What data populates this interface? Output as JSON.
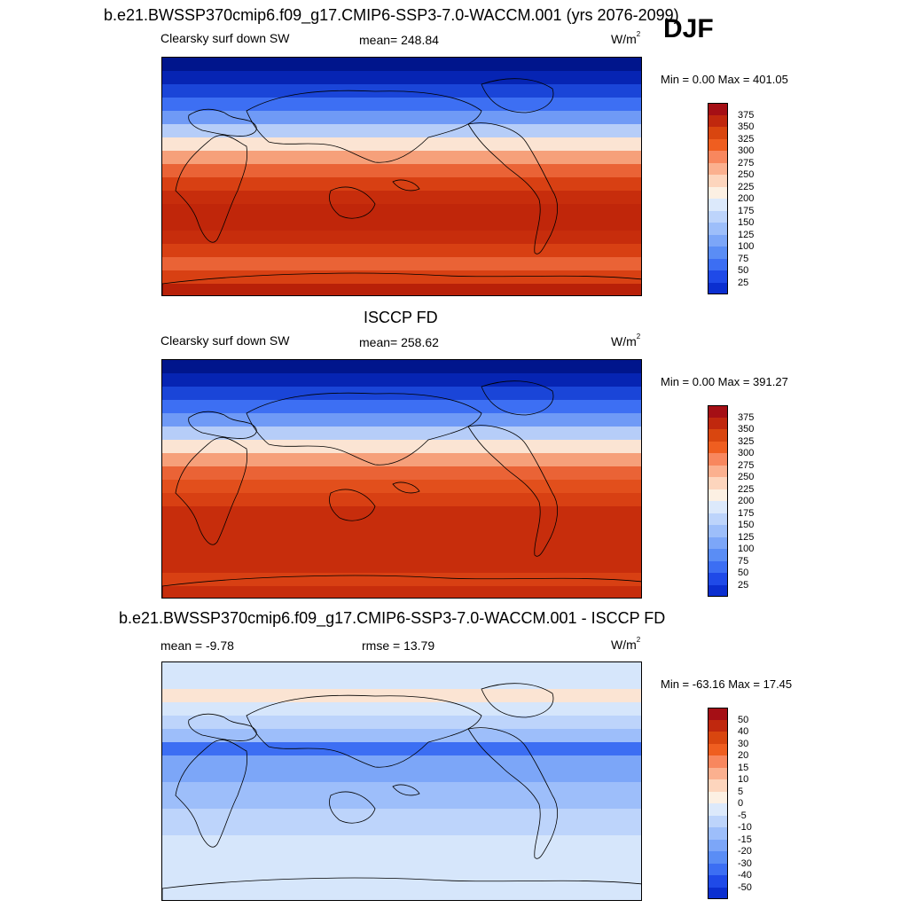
{
  "season": "DJF",
  "panels": [
    {
      "title": "b.e21.BWSSP370cmip6.f09_g17.CMIP6-SSP3-7.0-WACCM.001 (yrs 2076-2099)",
      "variable": "Clearsky surf down SW",
      "stat": "mean= 248.84",
      "units": "W/m",
      "units_sup": "2",
      "minmax": "Min =   0.00 Max = 401.05",
      "colorbar": {
        "colors": [
          "#a50f15",
          "#c0280e",
          "#d9460f",
          "#ef5e20",
          "#f8875e",
          "#fbb08f",
          "#fdd5bd",
          "#fcf0e3",
          "#dce9fb",
          "#bdd4fb",
          "#9dbefa",
          "#7ca6f8",
          "#5a8df5",
          "#3c6ef3",
          "#1f4ae8",
          "#0b2fd0",
          "#041fa6",
          "#000e7a"
        ],
        "labels": [
          "375",
          "350",
          "325",
          "300",
          "275",
          "250",
          "225",
          "200",
          "175",
          "150",
          "125",
          "100",
          "75",
          "50",
          "25"
        ]
      },
      "map_bands": [
        "#00158c",
        "#0624b3",
        "#1a45d8",
        "#3d6ff3",
        "#6f9af6",
        "#b6cdf8",
        "#fbe4d3",
        "#f6a07a",
        "#ea6336",
        "#d84013",
        "#c72d0c",
        "#c0260a",
        "#c0260a",
        "#c72d0c",
        "#d84013",
        "#ea6336",
        "#d84013",
        "#b82008"
      ]
    },
    {
      "title": "ISCCP FD",
      "variable": "Clearsky surf down SW",
      "stat": "mean= 258.62",
      "units": "W/m",
      "units_sup": "2",
      "minmax": "Min =   0.00 Max = 391.27",
      "colorbar": {
        "colors": [
          "#a50f15",
          "#c0280e",
          "#d9460f",
          "#ef5e20",
          "#f8875e",
          "#fbb08f",
          "#fdd5bd",
          "#fcf0e3",
          "#dce9fb",
          "#bdd4fb",
          "#9dbefa",
          "#7ca6f8",
          "#5a8df5",
          "#3c6ef3",
          "#1f4ae8",
          "#0b2fd0",
          "#041fa6",
          "#000e7a"
        ],
        "labels": [
          "375",
          "350",
          "325",
          "300",
          "275",
          "250",
          "225",
          "200",
          "175",
          "150",
          "125",
          "100",
          "75",
          "50",
          "25"
        ]
      },
      "map_bands": [
        "#00158c",
        "#0624b3",
        "#1a45d8",
        "#3d6ff3",
        "#6f9af6",
        "#b6cdf8",
        "#fbe4d3",
        "#f6a07a",
        "#ea6336",
        "#e24f1c",
        "#d84013",
        "#c72d0c",
        "#c72d0c",
        "#c72d0c",
        "#c72d0c",
        "#c72d0c",
        "#d84013",
        "#c72d0c"
      ]
    },
    {
      "title": "b.e21.BWSSP370cmip6.f09_g17.CMIP6-SSP3-7.0-WACCM.001 - ISCCP FD",
      "variable": "mean =  -9.78",
      "stat": "rmse =  13.79",
      "units": "W/m",
      "units_sup": "2",
      "minmax": "Min = -63.16 Max =  17.45",
      "colorbar": {
        "colors": [
          "#a50f15",
          "#c0280e",
          "#d9460f",
          "#ef5e20",
          "#f8875e",
          "#fbb08f",
          "#fdd5bd",
          "#fcf0e3",
          "#dce9fb",
          "#bdd4fb",
          "#9dbefa",
          "#7ca6f8",
          "#5a8df5",
          "#3c6ef3",
          "#1f4ae8",
          "#0b2fd0",
          "#041fa6",
          "#000e7a"
        ],
        "labels": [
          "50",
          "40",
          "30",
          "20",
          "15",
          "10",
          "5",
          "0",
          "-5",
          "-10",
          "-15",
          "-20",
          "-30",
          "-40",
          "-50"
        ]
      },
      "map_bands": [
        "#d6e6fb",
        "#d6e6fb",
        "#fbe4d3",
        "#d6e6fb",
        "#bdd4fb",
        "#9dbefa",
        "#3c6ef3",
        "#7ca6f8",
        "#7ca6f8",
        "#9dbefa",
        "#9dbefa",
        "#bdd4fb",
        "#bdd4fb",
        "#d6e6fb",
        "#d6e6fb",
        "#d6e6fb",
        "#d6e6fb",
        "#d6e6fb"
      ]
    }
  ]
}
